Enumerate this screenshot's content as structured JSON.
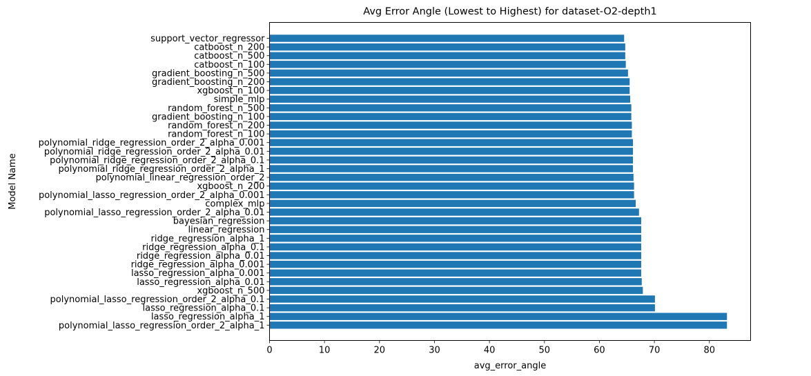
{
  "chart_data": {
    "type": "bar",
    "orientation": "horizontal",
    "title": "Avg Error Angle (Lowest to Highest) for dataset-O2-depth1",
    "xlabel": "avg_error_angle",
    "ylabel": "Model Name",
    "xlim": [
      0,
      87.5
    ],
    "xticks": [
      0,
      10,
      20,
      30,
      40,
      50,
      60,
      70,
      80
    ],
    "bar_color": "#1f77b4",
    "grid": false,
    "categories": [
      "support_vector_regressor",
      "catboost_n_200",
      "catboost_n_500",
      "catboost_n_100",
      "gradient_boosting_n_500",
      "gradient_boosting_n_200",
      "xgboost_n_100",
      "simple_mlp",
      "random_forest_n_500",
      "gradient_boosting_n_100",
      "random_forest_n_200",
      "random_forest_n_100",
      "polynomial_ridge_regression_order_2_alpha_0.001",
      "polynomial_ridge_regression_order_2_alpha_0.01",
      "polynomial_ridge_regression_order_2_alpha_0.1",
      "polynomial_ridge_regression_order_2_alpha_1",
      "polynomial_linear_regression_order_2",
      "xgboost_n_200",
      "polynomial_lasso_regression_order_2_alpha_0.001",
      "complex_mlp",
      "polynomial_lasso_regression_order_2_alpha_0.01",
      "bayesian_regression",
      "linear_regression",
      "ridge_regression_alpha_1",
      "ridge_regression_alpha_0.1",
      "ridge_regression_alpha_0.01",
      "ridge_regression_alpha_0.001",
      "lasso_regression_alpha_0.001",
      "lasso_regression_alpha_0.01",
      "xgboost_n_500",
      "polynomial_lasso_regression_order_2_alpha_0.1",
      "lasso_regression_alpha_0.1",
      "lasso_regression_alpha_1",
      "polynomial_lasso_regression_order_2_alpha_1"
    ],
    "values": [
      64.5,
      64.7,
      64.7,
      64.8,
      65.2,
      65.5,
      65.5,
      65.6,
      65.8,
      65.8,
      65.9,
      65.9,
      66.1,
      66.1,
      66.1,
      66.1,
      66.2,
      66.3,
      66.3,
      66.6,
      67.2,
      67.6,
      67.6,
      67.6,
      67.6,
      67.6,
      67.6,
      67.6,
      67.7,
      67.9,
      70.1,
      70.1,
      83.2,
      83.2
    ]
  }
}
